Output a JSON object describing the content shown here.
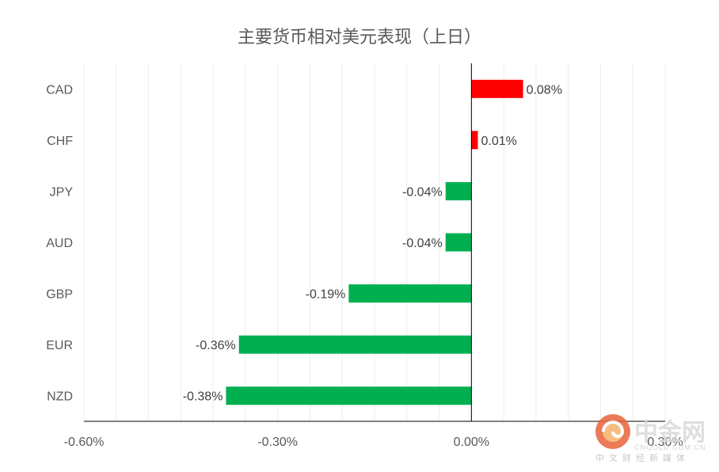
{
  "chart_data": {
    "type": "bar",
    "orientation": "horizontal",
    "title": "主要货币相对美元表现（上日）",
    "categories": [
      "CAD",
      "CHF",
      "JPY",
      "AUD",
      "GBP",
      "EUR",
      "NZD"
    ],
    "values": [
      0.08,
      0.01,
      -0.04,
      -0.04,
      -0.19,
      -0.36,
      -0.38
    ],
    "data_labels": [
      "0.08%",
      "0.01%",
      "-0.04%",
      "-0.04%",
      "-0.19%",
      "-0.36%",
      "-0.38%"
    ],
    "xlim": [
      -0.6,
      0.3
    ],
    "x_ticks": [
      {
        "value": -0.6,
        "label": "-0.60%"
      },
      {
        "value": -0.3,
        "label": "-0.30%"
      },
      {
        "value": 0.0,
        "label": "0.00%"
      },
      {
        "value": 0.3,
        "label": "0.30%"
      }
    ],
    "grid": "vertical minor lines",
    "legend": "none",
    "colors": {
      "positive": "#ff0000",
      "negative": "#00b050"
    }
  },
  "watermark": {
    "brand": "中金网",
    "url": "CNGOLD.COM.CN",
    "subtitle": "中文财经新媒体",
    "logo_icon": "cngold-swirl-logo"
  }
}
